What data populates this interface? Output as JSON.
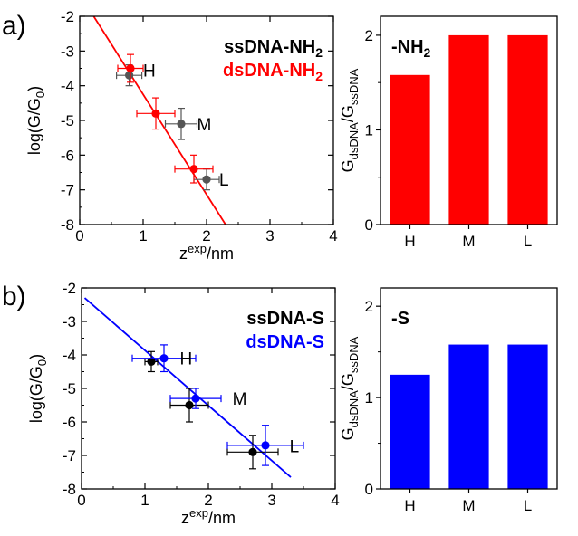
{
  "panels": [
    {
      "label": "a)",
      "scatter": {
        "type": "scatter",
        "xlabel": {
          "main": "z",
          "sup": "exp",
          "rest": "/nm"
        },
        "ylabel": {
          "main": "log(G/G",
          "sub": "0",
          "end": ")"
        },
        "xlim": [
          0,
          4
        ],
        "ylim": [
          -8,
          -2
        ],
        "xticks": [
          "0",
          "1",
          "2",
          "3",
          "4"
        ],
        "yticks": [
          "-8",
          "-7",
          "-6",
          "-5",
          "-4",
          "-3",
          "-2"
        ],
        "legend": [
          {
            "text": "ssDNA-NH",
            "sub": "2",
            "color": "#000000"
          },
          {
            "text": "dsDNA-NH",
            "sub": "2",
            "color": "#ff0000"
          }
        ],
        "series": [
          {
            "color": "#555555",
            "points": [
              {
                "x": 0.78,
                "y": -3.7,
                "xerr": 0.2,
                "yerr": 0.3
              },
              {
                "x": 1.6,
                "y": -5.1,
                "xerr": 0.25,
                "yerr": 0.45
              },
              {
                "x": 2.0,
                "y": -6.7,
                "xerr": 0.2,
                "yerr": 0.3
              }
            ]
          },
          {
            "color": "#ff0000",
            "points": [
              {
                "x": 0.8,
                "y": -3.5,
                "xerr": 0.2,
                "yerr": 0.4
              },
              {
                "x": 1.2,
                "y": -4.8,
                "xerr": 0.3,
                "yerr": 0.45
              },
              {
                "x": 1.8,
                "y": -6.4,
                "xerr": 0.3,
                "yerr": 0.4
              }
            ]
          }
        ],
        "fit": {
          "color": "#ff0000",
          "x1": 0.22,
          "y1": -2.0,
          "x2": 2.3,
          "y2": -8.0
        },
        "point_labels": [
          {
            "text": "H",
            "x": 1.0,
            "y": -3.55
          },
          {
            "text": "M",
            "x": 1.85,
            "y": -5.1
          },
          {
            "text": "L",
            "x": 2.2,
            "y": -6.7
          }
        ]
      },
      "bar": {
        "type": "bar",
        "title": "-NH",
        "title_sub": "2",
        "color": "#ff0000",
        "ylabel": {
          "main": "G",
          "sub1": "dsDNA",
          "mid": "/G",
          "sub2": "ssDNA"
        },
        "categories": [
          "H",
          "M",
          "L"
        ],
        "values": [
          1.58,
          2.0,
          2.0
        ],
        "ylim": [
          0,
          2.2
        ],
        "yticks": [
          0,
          1,
          2
        ]
      }
    },
    {
      "label": "b)",
      "scatter": {
        "type": "scatter",
        "xlabel": {
          "main": "z",
          "sup": "exp",
          "rest": "/nm"
        },
        "ylabel": {
          "main": "log(G/G",
          "sub": "0",
          "end": ")"
        },
        "xlim": [
          0,
          4
        ],
        "ylim": [
          -8,
          -2
        ],
        "xticks": [
          "0",
          "1",
          "2",
          "3",
          "4"
        ],
        "yticks": [
          "-8",
          "-7",
          "-6",
          "-5",
          "-4",
          "-3",
          "-2"
        ],
        "legend": [
          {
            "text": "ssDNA-S",
            "sub": "",
            "color": "#000000"
          },
          {
            "text": "dsDNA-S",
            "sub": "",
            "color": "#0000ff"
          }
        ],
        "series": [
          {
            "color": "#000000",
            "points": [
              {
                "x": 1.1,
                "y": -4.2,
                "xerr": 0.1,
                "yerr": 0.3
              },
              {
                "x": 1.7,
                "y": -5.5,
                "xerr": 0.3,
                "yerr": 0.5
              },
              {
                "x": 2.7,
                "y": -6.9,
                "xerr": 0.4,
                "yerr": 0.5
              }
            ]
          },
          {
            "color": "#0000ff",
            "points": [
              {
                "x": 1.3,
                "y": -4.1,
                "xerr": 0.5,
                "yerr": 0.4
              },
              {
                "x": 1.8,
                "y": -5.3,
                "xerr": 0.4,
                "yerr": 0.3
              },
              {
                "x": 2.9,
                "y": -6.7,
                "xerr": 0.6,
                "yerr": 0.6
              }
            ]
          }
        ],
        "fit": {
          "color": "#0000ff",
          "x1": 0.05,
          "y1": -2.3,
          "x2": 3.3,
          "y2": -7.65
        },
        "point_labels": [
          {
            "text": "H",
            "x": 1.55,
            "y": -4.1
          },
          {
            "text": "M",
            "x": 2.38,
            "y": -5.3
          },
          {
            "text": "L",
            "x": 3.28,
            "y": -6.72
          }
        ]
      },
      "bar": {
        "type": "bar",
        "title": "-S",
        "title_sub": "",
        "color": "#0000ff",
        "ylabel": {
          "main": "G",
          "sub1": "dsDNA",
          "mid": "/G",
          "sub2": "ssDNA"
        },
        "categories": [
          "H",
          "M",
          "L"
        ],
        "values": [
          1.25,
          1.58,
          1.58
        ],
        "ylim": [
          0,
          2.2
        ],
        "yticks": [
          0,
          1,
          2
        ]
      }
    }
  ]
}
